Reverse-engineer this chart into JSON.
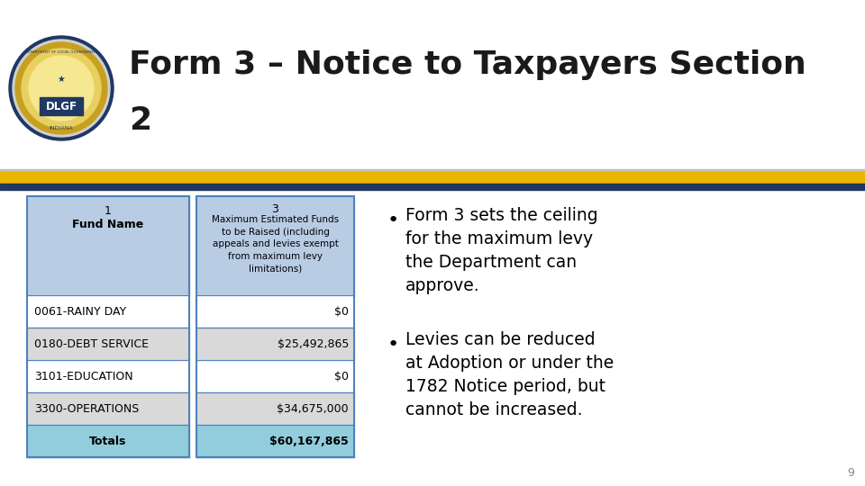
{
  "title_line1": "Form 3 – Notice to Taxpayers Section",
  "title_line2": "2",
  "title_fontsize": 26,
  "bg_color": "#ffffff",
  "stripe_yellow": "#e8b700",
  "stripe_blue": "#1f3864",
  "stripe_gray": "#c0c0c0",
  "table_header_bg": "#b8cce4",
  "table_totals_bg": "#92cddc",
  "table_border_color": "#4f81bd",
  "row_bg_colors": [
    "#ffffff",
    "#d9d9d9",
    "#ffffff",
    "#d9d9d9",
    "#92cddc"
  ],
  "fund_names": [
    "0061-RAINY DAY",
    "0180-DEBT SERVICE",
    "3101-EDUCATION",
    "3300-OPERATIONS",
    "Totals"
  ],
  "fund_values": [
    "$0",
    "$25,492,865",
    "$0",
    "$34,675,000",
    "$60,167,865"
  ],
  "col1_header_num": "1",
  "col1_header_text": "Fund Name",
  "col2_header_num": "3",
  "col2_header_text": "Maximum Estimated Funds\nto be Raised (including\nappeals and levies exempt\nfrom maximum levy\nlimitations)",
  "bullet1_lines": [
    "Form 3 sets the ceiling",
    "for the maximum levy",
    "the Department can",
    "approve."
  ],
  "bullet2_lines": [
    "Levies can be reduced",
    "at Adoption or under the",
    "1782 Notice period, but",
    "cannot be increased."
  ],
  "page_number": "9",
  "logo_outer_color": "#1f3864",
  "logo_ring_color": "#c8a020",
  "logo_inner_color": "#d4b840",
  "logo_box_color": "#1f3864",
  "logo_text_color": "#ffffff",
  "logo_bottom_text_color": "#1f3864"
}
